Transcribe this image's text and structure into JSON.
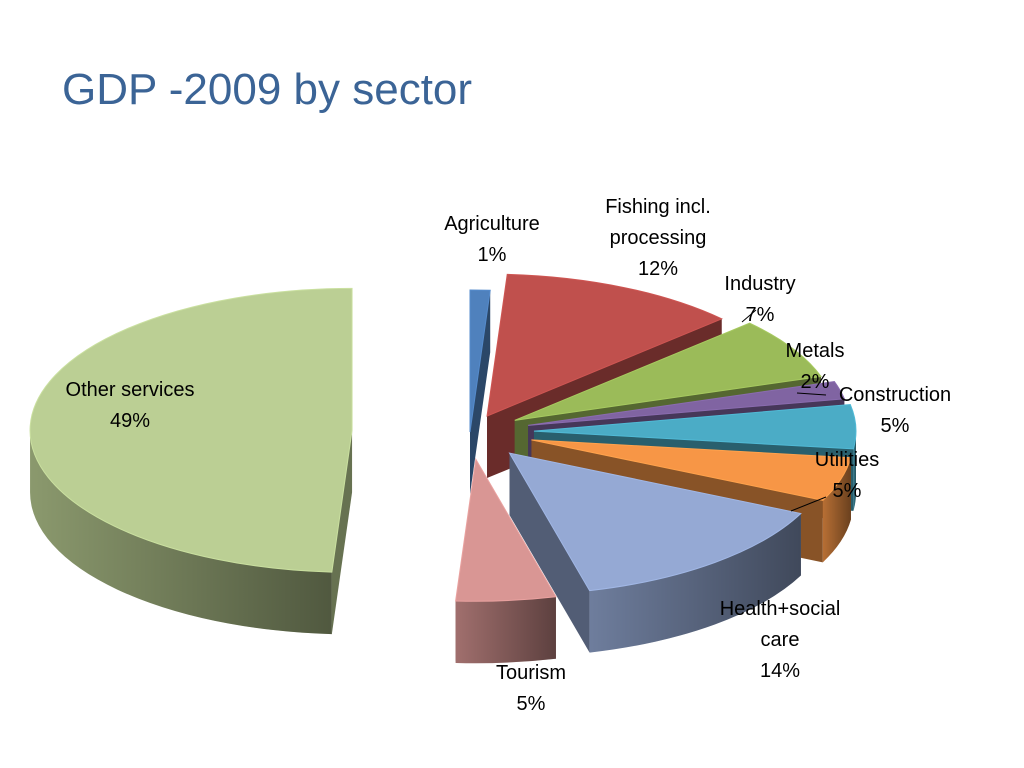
{
  "slide": {
    "title": "GDP -2009 by sector"
  },
  "chart_data": {
    "type": "pie",
    "title": "GDP -2009 by sector",
    "categories": [
      "Agriculture",
      "Fishing incl. processing",
      "Industry",
      "Metals",
      "Construction",
      "Utilities",
      "Health+social care",
      "Tourism",
      "Other services"
    ],
    "values": [
      1,
      12,
      7,
      2,
      5,
      5,
      14,
      5,
      49
    ],
    "value_labels": [
      "1%",
      "12%",
      "7%",
      "2%",
      "5%",
      "5%",
      "14%",
      "5%",
      "49%"
    ],
    "unit": "%",
    "legend": "none",
    "style": "3d-exploded",
    "label_lines": [
      [
        "Agriculture",
        "1%"
      ],
      [
        "Fishing incl.",
        "processing",
        "12%"
      ],
      [
        "Industry",
        "7%"
      ],
      [
        "Metals",
        "2%"
      ],
      [
        "Construction",
        "5%"
      ],
      [
        "Utilities",
        "5%"
      ],
      [
        "Health+social",
        "care",
        "14%"
      ],
      [
        "Tourism",
        "5%"
      ],
      [
        "Other services",
        "49%"
      ]
    ],
    "colors": [
      "#4f81bd",
      "#c0504d",
      "#9bbb59",
      "#8064a2",
      "#4bacc6",
      "#f79646",
      "#95a9d4",
      "#d99694",
      "#bbcf94"
    ]
  }
}
